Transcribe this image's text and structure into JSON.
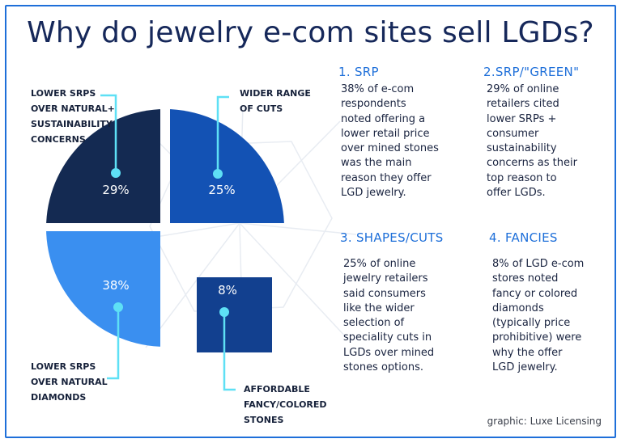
{
  "title": "Why do jewelry e-com sites sell LGDs?",
  "colors": {
    "frame": "#1e6fd9",
    "accent": "#1e6fd9",
    "leader": "#5ee0f5"
  },
  "chart_data": {
    "type": "pie",
    "style": "exploded-quadrant",
    "slices": [
      {
        "label": "LOWER SRPS OVER NATURAL+ SUSTAINABILITY CONCERNS",
        "value": 29,
        "value_label": "29%",
        "color": "#142a52"
      },
      {
        "label": "WIDER RANGE OF CUTS",
        "value": 25,
        "value_label": "25%",
        "color": "#1352b4"
      },
      {
        "label": "LOWER SRPS OVER NATURAL DIAMONDS",
        "value": 38,
        "value_label": "38%",
        "color": "#3a8ff0"
      },
      {
        "label": "AFFORDABLE FANCY/COLORED STONES",
        "value": 8,
        "value_label": "8%",
        "color": "#12408f"
      }
    ]
  },
  "callouts": {
    "top_left": [
      "LOWER SRPS",
      "OVER NATURAL+",
      "SUSTAINABILITY",
      "CONCERNS"
    ],
    "top_right": [
      "WIDER RANGE",
      "OF CUTS"
    ],
    "bottom_left": [
      "LOWER SRPS",
      "OVER NATURAL",
      "DIAMONDS"
    ],
    "bottom_right": [
      "AFFORDABLE",
      "FANCY/COLORED",
      "STONES"
    ]
  },
  "notes": [
    {
      "heading": "1. SRP",
      "body": "38% of e-com\nrespondents\n noted offering a\nlower retail price\nover mined stones\nwas the main\nreason they offer\nLGD jewelry."
    },
    {
      "heading": "2.SRP/\"GREEN\"",
      "body": "29% of online\nretailers cited\n lower SRPs +\nconsumer\nsustainability\nconcerns as their\ntop reason to\noffer LGDs."
    },
    {
      "heading": "3. SHAPES/CUTS",
      "body": "25% of online\njewelry retailers\n said consumers\nlike the wider\nselection of\nspeciality cuts in\nLGDs over mined\nstones options."
    },
    {
      "heading": "4. FANCIES",
      "body": "8% of LGD e-com\nstores noted\nfancy or colored\ndiamonds\n(typically price\nprohibitive) were\nwhy the offer\nLGD jewelry."
    }
  ],
  "credit": "graphic: Luxe Licensing"
}
